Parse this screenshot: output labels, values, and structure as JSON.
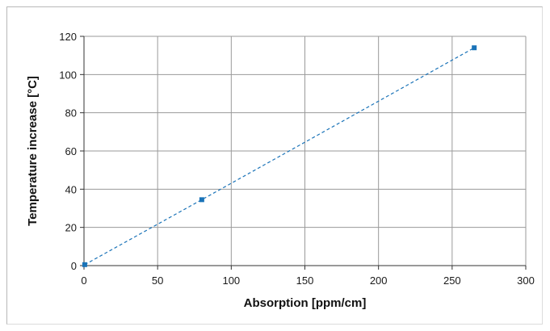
{
  "chart_data": {
    "type": "scatter",
    "title": "",
    "xlabel": "Absorption [ppm/cm]",
    "ylabel": "Temperature increase [°C]",
    "xlim": [
      0,
      300
    ],
    "ylim": [
      0,
      120
    ],
    "x_ticks": [
      "0",
      "50",
      "100",
      "150",
      "200",
      "250",
      "300"
    ],
    "y_ticks": [
      "0",
      "20",
      "40",
      "60",
      "80",
      "100",
      "120"
    ],
    "grid": true,
    "legend": "none",
    "series": [
      {
        "x": [
          0.5,
          80,
          265
        ],
        "y": [
          0.5,
          34.5,
          114
        ],
        "marker": "square",
        "color": "#1a73b8",
        "trendline": "dashed-linear"
      }
    ]
  }
}
